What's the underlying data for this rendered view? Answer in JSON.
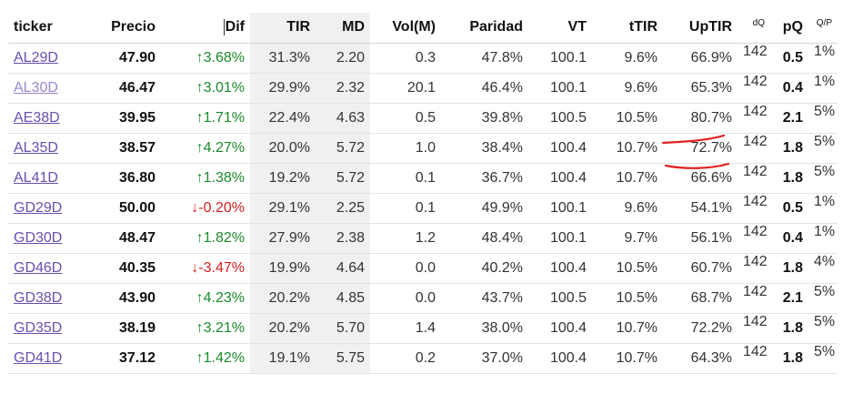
{
  "headers": {
    "ticker": "ticker",
    "precio": "Precio",
    "dif": "Dif",
    "tir": "TIR",
    "md": "MD",
    "vol": "Vol(M)",
    "paridad": "Paridad",
    "vt": "VT",
    "ttir": "tTIR",
    "uptir": "UpTIR",
    "dq": "dQ",
    "pq": "pQ",
    "qp": "Q/P"
  },
  "rows": [
    {
      "ticker": "AL29D",
      "precio": "47.90",
      "dif": "↑3.68%",
      "dir": "up",
      "tir": "31.3%",
      "md": "2.20",
      "vol": "0.3",
      "paridad": "47.8%",
      "vt": "100.1",
      "ttir": "9.6%",
      "uptir": "66.9%",
      "dq": "142",
      "pq": "0.5",
      "qp": "1%",
      "visited": false
    },
    {
      "ticker": "AL30D",
      "precio": "46.47",
      "dif": "↑3.01%",
      "dir": "up",
      "tir": "29.9%",
      "md": "2.32",
      "vol": "20.1",
      "paridad": "46.4%",
      "vt": "100.1",
      "ttir": "9.6%",
      "uptir": "65.3%",
      "dq": "142",
      "pq": "0.4",
      "qp": "1%",
      "visited": true
    },
    {
      "ticker": "AE38D",
      "precio": "39.95",
      "dif": "↑1.71%",
      "dir": "up",
      "tir": "22.4%",
      "md": "4.63",
      "vol": "0.5",
      "paridad": "39.8%",
      "vt": "100.5",
      "ttir": "10.5%",
      "uptir": "80.7%",
      "dq": "142",
      "pq": "2.1",
      "qp": "5%",
      "visited": false
    },
    {
      "ticker": "AL35D",
      "precio": "38.57",
      "dif": "↑4.27%",
      "dir": "up",
      "tir": "20.0%",
      "md": "5.72",
      "vol": "1.0",
      "paridad": "38.4%",
      "vt": "100.4",
      "ttir": "10.7%",
      "uptir": "72.7%",
      "dq": "142",
      "pq": "1.8",
      "qp": "5%",
      "visited": false
    },
    {
      "ticker": "AL41D",
      "precio": "36.80",
      "dif": "↑1.38%",
      "dir": "up",
      "tir": "19.2%",
      "md": "5.72",
      "vol": "0.1",
      "paridad": "36.7%",
      "vt": "100.4",
      "ttir": "10.7%",
      "uptir": "66.6%",
      "dq": "142",
      "pq": "1.8",
      "qp": "5%",
      "visited": false
    },
    {
      "ticker": "GD29D",
      "precio": "50.00",
      "dif": "↓-0.20%",
      "dir": "down",
      "tir": "29.1%",
      "md": "2.25",
      "vol": "0.1",
      "paridad": "49.9%",
      "vt": "100.1",
      "ttir": "9.6%",
      "uptir": "54.1%",
      "dq": "142",
      "pq": "0.5",
      "qp": "1%",
      "visited": false
    },
    {
      "ticker": "GD30D",
      "precio": "48.47",
      "dif": "↑1.82%",
      "dir": "up",
      "tir": "27.9%",
      "md": "2.38",
      "vol": "1.2",
      "paridad": "48.4%",
      "vt": "100.1",
      "ttir": "9.7%",
      "uptir": "56.1%",
      "dq": "142",
      "pq": "0.4",
      "qp": "1%",
      "visited": false
    },
    {
      "ticker": "GD46D",
      "precio": "40.35",
      "dif": "↓-3.47%",
      "dir": "down",
      "tir": "19.9%",
      "md": "4.64",
      "vol": "0.0",
      "paridad": "40.2%",
      "vt": "100.4",
      "ttir": "10.5%",
      "uptir": "60.7%",
      "dq": "142",
      "pq": "1.8",
      "qp": "4%",
      "visited": false
    },
    {
      "ticker": "GD38D",
      "precio": "43.90",
      "dif": "↑4.23%",
      "dir": "up",
      "tir": "20.2%",
      "md": "4.85",
      "vol": "0.0",
      "paridad": "43.7%",
      "vt": "100.5",
      "ttir": "10.5%",
      "uptir": "68.7%",
      "dq": "142",
      "pq": "2.1",
      "qp": "5%",
      "visited": false
    },
    {
      "ticker": "GD35D",
      "precio": "38.19",
      "dif": "↑3.21%",
      "dir": "up",
      "tir": "20.2%",
      "md": "5.70",
      "vol": "1.4",
      "paridad": "38.0%",
      "vt": "100.4",
      "ttir": "10.7%",
      "uptir": "72.2%",
      "dq": "142",
      "pq": "1.8",
      "qp": "5%",
      "visited": false
    },
    {
      "ticker": "GD41D",
      "precio": "37.12",
      "dif": "↑1.42%",
      "dir": "up",
      "tir": "19.1%",
      "md": "5.75",
      "vol": "0.2",
      "paridad": "37.0%",
      "vt": "100.4",
      "ttir": "10.7%",
      "uptir": "64.3%",
      "dq": "142",
      "pq": "1.8",
      "qp": "5%",
      "visited": false
    }
  ],
  "colors": {
    "up": "#1a8a2a",
    "down": "#d21f1f",
    "link": "#6a4fb0",
    "link_visited": "#9a86cc",
    "annotation": "#e02020"
  }
}
